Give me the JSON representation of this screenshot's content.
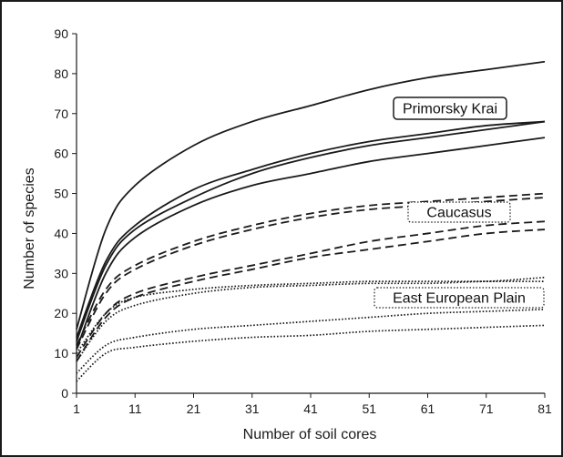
{
  "chart_data": {
    "type": "line",
    "title": "",
    "xlabel": "Number of soil cores",
    "ylabel": "Number of species",
    "xlim": [
      1,
      81
    ],
    "ylim": [
      0,
      90
    ],
    "x_ticks": [
      1,
      11,
      21,
      31,
      41,
      51,
      61,
      71,
      81
    ],
    "y_ticks": [
      0,
      10,
      20,
      30,
      40,
      50,
      60,
      70,
      80,
      90
    ],
    "grid": false,
    "x": [
      1,
      6,
      11,
      21,
      31,
      41,
      51,
      61,
      71,
      81
    ],
    "groups": [
      {
        "label": "Primorsky Krai",
        "line_style": "solid",
        "series": [
          {
            "values": [
              16,
              41,
              52,
              62,
              68,
              72,
              76,
              79,
              81,
              83
            ]
          },
          {
            "values": [
              14,
              33,
              42,
              51,
              56,
              60,
              63,
              65,
              67,
              68
            ]
          },
          {
            "values": [
              13,
              32,
              41,
              49,
              55,
              59,
              62,
              64,
              66,
              68
            ]
          },
          {
            "values": [
              11,
              30,
              39,
              47,
              52,
              55,
              58,
              60,
              62,
              64
            ]
          }
        ]
      },
      {
        "label": "Caucasus",
        "line_style": "dashed",
        "series": [
          {
            "values": [
              12,
              26,
              32,
              38,
              42,
              45,
              47,
              48,
              49,
              50
            ]
          },
          {
            "values": [
              11,
              25,
              31,
              37,
              41,
              44,
              46,
              47,
              48,
              49
            ]
          },
          {
            "values": [
              9,
              20,
              25,
              29,
              32,
              35,
              38,
              40,
              42,
              43
            ]
          },
          {
            "values": [
              8,
              19,
              24,
              28,
              31,
              34,
              36,
              38,
              40,
              41
            ]
          }
        ]
      },
      {
        "label": "East European Plain",
        "line_style": "dotted",
        "series": [
          {
            "values": [
              10,
              20,
              24,
              26,
              27,
              27.5,
              28,
              28,
              28,
              29
            ]
          },
          {
            "values": [
              8,
              18,
              22,
              25,
              26.5,
              27,
              27.5,
              27.5,
              28,
              28
            ]
          },
          {
            "values": [
              5,
              12,
              14,
              16,
              17,
              18,
              19,
              20,
              20.5,
              21
            ]
          },
          {
            "values": [
              3,
              10,
              11.5,
              13,
              14,
              14.5,
              15.5,
              16,
              16.5,
              17
            ]
          }
        ]
      }
    ],
    "colors": {
      "line": "#1a1a1a",
      "label_box_border": "#1a1a1a",
      "background": "#ffffff"
    }
  }
}
